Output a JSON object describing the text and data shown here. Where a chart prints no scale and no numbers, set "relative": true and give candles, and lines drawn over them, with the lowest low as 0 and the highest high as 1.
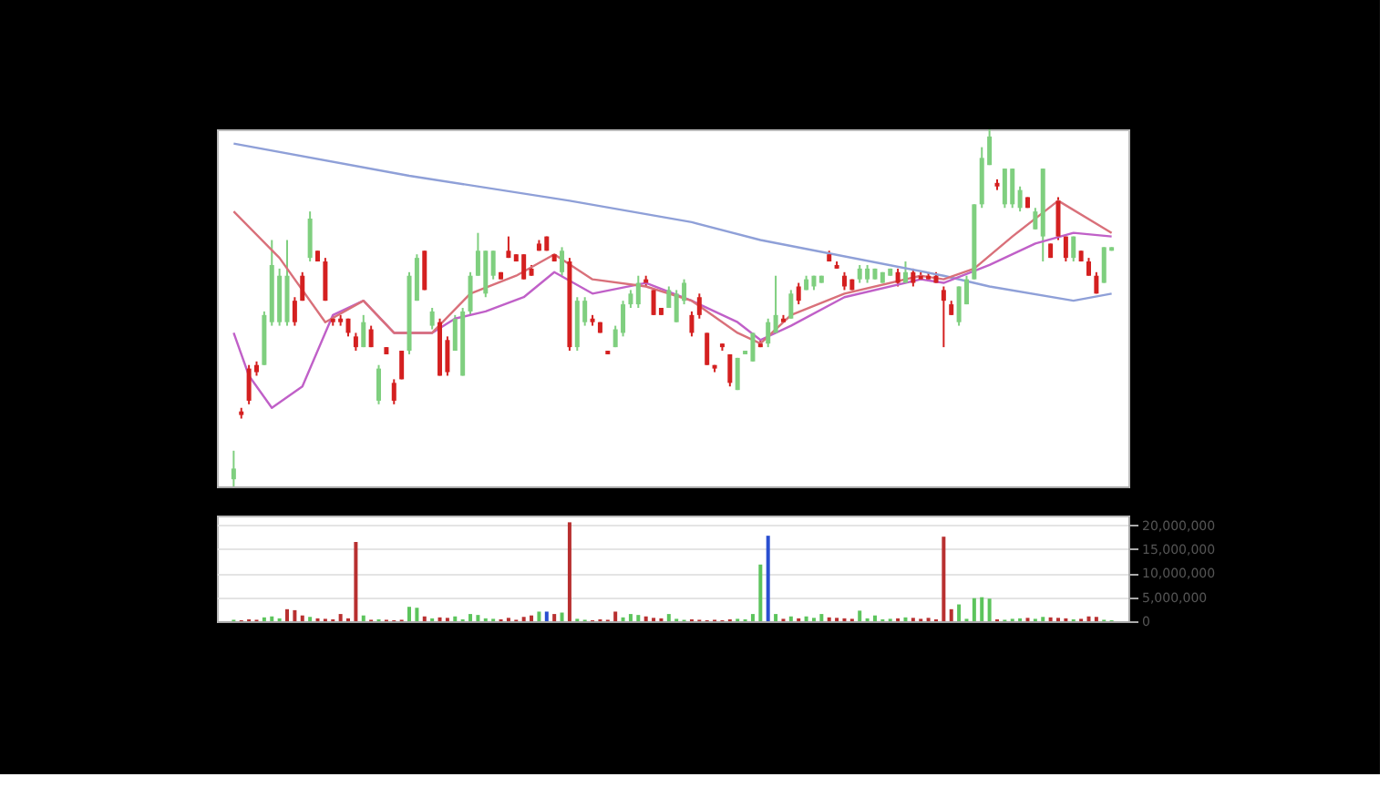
{
  "chart_data": [
    {
      "type": "candlestick",
      "relative": true,
      "tick_labels": false,
      "categories": [
        null,
        null,
        null,
        null,
        null,
        null,
        null,
        null,
        null,
        null,
        null,
        null,
        null,
        null,
        null,
        null,
        null,
        null,
        null,
        null,
        null,
        null,
        null,
        null,
        null,
        null,
        null,
        null,
        null,
        null,
        null,
        null,
        null,
        null,
        null,
        null,
        null,
        null,
        null,
        null,
        null,
        null,
        null,
        null,
        null,
        null,
        null,
        null,
        null,
        null,
        null,
        null,
        null,
        null,
        null,
        null,
        null,
        null,
        null,
        null,
        null,
        null,
        null,
        null,
        null,
        null,
        null,
        null,
        null,
        null,
        null,
        null,
        null,
        null,
        null,
        null,
        null,
        null,
        null,
        null,
        null,
        null,
        null,
        null,
        null,
        null,
        null,
        null,
        null,
        null,
        null,
        null,
        null,
        null,
        null,
        null,
        null,
        null,
        null,
        null,
        null,
        null,
        null,
        null,
        null,
        null,
        null,
        null,
        null,
        null,
        null,
        null,
        null,
        null,
        null,
        null
      ],
      "ohlc": [
        [
          0.02,
          0.1,
          0,
          0.05
        ],
        [
          0.21,
          0.22,
          0.19,
          0.2
        ],
        [
          0.33,
          0.34,
          0.23,
          0.24
        ],
        [
          0.34,
          0.35,
          0.31,
          0.32
        ],
        [
          0.34,
          0.49,
          0.34,
          0.48
        ],
        [
          0.46,
          0.69,
          0.45,
          0.62
        ],
        [
          0.46,
          0.61,
          0.45,
          0.59
        ],
        [
          0.46,
          0.69,
          0.45,
          0.59
        ],
        [
          0.52,
          0.53,
          0.45,
          0.46
        ],
        [
          0.59,
          0.6,
          0.52,
          0.52
        ],
        [
          0.64,
          0.77,
          0.63,
          0.75
        ],
        [
          0.66,
          0.66,
          0.63,
          0.63
        ],
        [
          0.63,
          0.64,
          0.52,
          0.52
        ],
        [
          0.47,
          0.48,
          0.45,
          0.46
        ],
        [
          0.47,
          0.48,
          0.45,
          0.46
        ],
        [
          0.47,
          0.47,
          0.42,
          0.43
        ],
        [
          0.42,
          0.43,
          0.38,
          0.39
        ],
        [
          0.39,
          0.48,
          0.39,
          0.46
        ],
        [
          0.44,
          0.45,
          0.39,
          0.39
        ],
        [
          0.24,
          0.34,
          0.23,
          0.33
        ],
        [
          0.39,
          0.39,
          0.37,
          0.37
        ],
        [
          0.29,
          0.3,
          0.23,
          0.24
        ],
        [
          0.38,
          0.38,
          0.3,
          0.3
        ],
        [
          0.38,
          0.6,
          0.37,
          0.59
        ],
        [
          0.52,
          0.65,
          0.52,
          0.64
        ],
        [
          0.66,
          0.66,
          0.55,
          0.55
        ],
        [
          0.45,
          0.5,
          0.44,
          0.49
        ],
        [
          0.46,
          0.47,
          0.31,
          0.31
        ],
        [
          0.41,
          0.42,
          0.31,
          0.32
        ],
        [
          0.38,
          0.48,
          0.38,
          0.47
        ],
        [
          0.31,
          0.5,
          0.31,
          0.49
        ],
        [
          0.49,
          0.6,
          0.48,
          0.59
        ],
        [
          0.59,
          0.71,
          0.59,
          0.66
        ],
        [
          0.54,
          0.66,
          0.53,
          0.66
        ],
        [
          0.59,
          0.66,
          0.58,
          0.66
        ],
        [
          0.6,
          0.6,
          0.58,
          0.58
        ],
        [
          0.66,
          0.7,
          0.64,
          0.64
        ],
        [
          0.65,
          0.65,
          0.63,
          0.63
        ],
        [
          0.65,
          0.65,
          0.58,
          0.58
        ],
        [
          0.61,
          0.62,
          0.59,
          0.59
        ],
        [
          0.68,
          0.69,
          0.66,
          0.66
        ],
        [
          0.7,
          0.7,
          0.66,
          0.66
        ],
        [
          0.65,
          0.65,
          0.63,
          0.63
        ],
        [
          0.6,
          0.67,
          0.59,
          0.66
        ],
        [
          0.63,
          0.64,
          0.38,
          0.39
        ],
        [
          0.39,
          0.53,
          0.38,
          0.52
        ],
        [
          0.46,
          0.53,
          0.45,
          0.52
        ],
        [
          0.47,
          0.48,
          0.45,
          0.46
        ],
        [
          0.46,
          0.46,
          0.43,
          0.43
        ],
        [
          0.38,
          0.38,
          0.37,
          0.37
        ],
        [
          0.39,
          0.45,
          0.39,
          0.44
        ],
        [
          0.43,
          0.52,
          0.42,
          0.51
        ],
        [
          0.51,
          0.55,
          0.5,
          0.54
        ],
        [
          0.51,
          0.59,
          0.5,
          0.57
        ],
        [
          0.58,
          0.59,
          0.56,
          0.57
        ],
        [
          0.55,
          0.55,
          0.48,
          0.48
        ],
        [
          0.5,
          0.5,
          0.48,
          0.48
        ],
        [
          0.5,
          0.56,
          0.5,
          0.55
        ],
        [
          0.46,
          0.55,
          0.46,
          0.54
        ],
        [
          0.52,
          0.58,
          0.51,
          0.57
        ],
        [
          0.48,
          0.49,
          0.42,
          0.43
        ],
        [
          0.53,
          0.54,
          0.47,
          0.48
        ],
        [
          0.43,
          0.43,
          0.34,
          0.34
        ],
        [
          0.34,
          0.34,
          0.32,
          0.33
        ],
        [
          0.4,
          0.4,
          0.38,
          0.39
        ],
        [
          0.37,
          0.37,
          0.28,
          0.29
        ],
        [
          0.27,
          0.36,
          0.27,
          0.36
        ],
        [
          0.37,
          0.38,
          0.37,
          0.38
        ],
        [
          0.35,
          0.43,
          0.35,
          0.43
        ],
        [
          0.4,
          0.41,
          0.39,
          0.39
        ],
        [
          0.4,
          0.47,
          0.39,
          0.46
        ],
        [
          0.43,
          0.59,
          0.43,
          0.48
        ],
        [
          0.47,
          0.48,
          0.46,
          0.46
        ],
        [
          0.47,
          0.55,
          0.47,
          0.54
        ],
        [
          0.56,
          0.57,
          0.51,
          0.52
        ],
        [
          0.55,
          0.59,
          0.55,
          0.58
        ],
        [
          0.56,
          0.59,
          0.55,
          0.59
        ],
        [
          0.57,
          0.59,
          0.57,
          0.59
        ],
        [
          0.65,
          0.66,
          0.63,
          0.63
        ],
        [
          0.62,
          0.63,
          0.61,
          0.61
        ],
        [
          0.59,
          0.6,
          0.55,
          0.56
        ],
        [
          0.58,
          0.58,
          0.55,
          0.55
        ],
        [
          0.58,
          0.62,
          0.57,
          0.61
        ],
        [
          0.58,
          0.62,
          0.57,
          0.61
        ],
        [
          0.58,
          0.61,
          0.58,
          0.61
        ],
        [
          0.57,
          0.6,
          0.57,
          0.6
        ],
        [
          0.59,
          0.61,
          0.59,
          0.61
        ],
        [
          0.6,
          0.61,
          0.56,
          0.57
        ],
        [
          0.57,
          0.63,
          0.57,
          0.6
        ],
        [
          0.6,
          0.61,
          0.56,
          0.57
        ],
        [
          0.59,
          0.6,
          0.58,
          0.58
        ],
        [
          0.59,
          0.6,
          0.58,
          0.58
        ],
        [
          0.59,
          0.6,
          0.57,
          0.57
        ],
        [
          0.55,
          0.56,
          0.39,
          0.52
        ],
        [
          0.51,
          0.52,
          0.48,
          0.48
        ],
        [
          0.46,
          0.56,
          0.45,
          0.56
        ],
        [
          0.51,
          0.59,
          0.51,
          0.58
        ],
        [
          0.58,
          0.79,
          0.58,
          0.79
        ],
        [
          0.79,
          0.95,
          0.78,
          0.92
        ],
        [
          0.9,
          1,
          0.9,
          0.98
        ],
        [
          0.85,
          0.86,
          0.83,
          0.84
        ],
        [
          0.79,
          0.89,
          0.78,
          0.89
        ],
        [
          0.79,
          0.89,
          0.78,
          0.89
        ],
        [
          0.78,
          0.84,
          0.77,
          0.83
        ],
        [
          0.81,
          0.81,
          0.78,
          0.78
        ],
        [
          0.72,
          0.78,
          0.72,
          0.77
        ],
        [
          0.7,
          0.89,
          0.63,
          0.89
        ],
        [
          0.68,
          0.68,
          0.64,
          0.64
        ],
        [
          0.8,
          0.81,
          0.69,
          0.7
        ],
        [
          0.7,
          0.7,
          0.63,
          0.64
        ],
        [
          0.64,
          0.7,
          0.63,
          0.7
        ],
        [
          0.66,
          0.66,
          0.63,
          0.63
        ],
        [
          0.63,
          0.64,
          0.59,
          0.59
        ],
        [
          0.59,
          0.6,
          0.54,
          0.54
        ],
        [
          0.57,
          0.67,
          0.57,
          0.67
        ],
        [
          0.66,
          0.67,
          0.66,
          0.67
        ]
      ],
      "colors": [
        "#7fcf7f",
        "#d42020",
        "#d42020",
        "#d42020",
        "#7fcf7f",
        "#7fcf7f",
        "#7fcf7f",
        "#7fcf7f",
        "#d42020",
        "#d42020",
        "#7fcf7f",
        "#d42020",
        "#d42020",
        "#d42020",
        "#d42020",
        "#d42020",
        "#d42020",
        "#7fcf7f",
        "#d42020",
        "#7fcf7f",
        "#d42020",
        "#d42020",
        "#d42020",
        "#7fcf7f",
        "#7fcf7f",
        "#d42020",
        "#7fcf7f",
        "#d42020",
        "#d42020",
        "#7fcf7f",
        "#7fcf7f",
        "#7fcf7f",
        "#7fcf7f",
        "#7fcf7f",
        "#7fcf7f",
        "#d42020",
        "#d42020",
        "#d42020",
        "#d42020",
        "#d42020",
        "#d42020",
        "#d42020",
        "#d42020",
        "#7fcf7f",
        "#d42020",
        "#7fcf7f",
        "#7fcf7f",
        "#d42020",
        "#d42020",
        "#d42020",
        "#7fcf7f",
        "#7fcf7f",
        "#7fcf7f",
        "#7fcf7f",
        "#d42020",
        "#d42020",
        "#d42020",
        "#7fcf7f",
        "#7fcf7f",
        "#7fcf7f",
        "#d42020",
        "#d42020",
        "#d42020",
        "#d42020",
        "#d42020",
        "#d42020",
        "#7fcf7f",
        "#7fcf7f",
        "#7fcf7f",
        "#d42020",
        "#7fcf7f",
        "#7fcf7f",
        "#d42020",
        "#7fcf7f",
        "#d42020",
        "#7fcf7f",
        "#7fcf7f",
        "#7fcf7f",
        "#d42020",
        "#d42020",
        "#d42020",
        "#d42020",
        "#7fcf7f",
        "#7fcf7f",
        "#7fcf7f",
        "#7fcf7f",
        "#7fcf7f",
        "#d42020",
        "#7fcf7f",
        "#d42020",
        "#d42020",
        "#d42020",
        "#d42020",
        "#d42020",
        "#d42020",
        "#7fcf7f",
        "#7fcf7f",
        "#7fcf7f",
        "#7fcf7f",
        "#7fcf7f",
        "#d42020",
        "#7fcf7f",
        "#7fcf7f",
        "#7fcf7f",
        "#d42020",
        "#7fcf7f",
        "#7fcf7f",
        "#d42020",
        "#d42020",
        "#d42020",
        "#7fcf7f",
        "#d42020",
        "#d42020",
        "#d42020",
        "#7fcf7f",
        "#7fcf7f"
      ],
      "series": [
        {
          "type": "line",
          "color": "#8fa0d8",
          "values": [
            0.96,
            null,
            null,
            null,
            null,
            null,
            null,
            null,
            null,
            null,
            null,
            null,
            null,
            null,
            null,
            null,
            null,
            null,
            null,
            null,
            null,
            null,
            null,
            0.87,
            null,
            null,
            null,
            null,
            null,
            null,
            null,
            null,
            null,
            null,
            null,
            null,
            null,
            null,
            null,
            null,
            null,
            null,
            null,
            null,
            0.8,
            null,
            null,
            null,
            null,
            null,
            null,
            null,
            null,
            null,
            null,
            null,
            null,
            null,
            null,
            null,
            0.74,
            null,
            null,
            null,
            null,
            null,
            null,
            null,
            null,
            0.69,
            null,
            null,
            null,
            null,
            null,
            null,
            null,
            null,
            null,
            null,
            null,
            null,
            null,
            null,
            null,
            null,
            null,
            null,
            null,
            null,
            null,
            null,
            null,
            0.59,
            null,
            null,
            null,
            null,
            null,
            0.56,
            null,
            null,
            null,
            null,
            null,
            null,
            null,
            null,
            null,
            null,
            0.52,
            null,
            null,
            null,
            null,
            0.54
          ]
        },
        {
          "type": "line",
          "color": "#c060c8",
          "values": [
            0.43,
            null,
            0.31,
            null,
            null,
            0.22,
            null,
            null,
            null,
            0.28,
            null,
            null,
            null,
            0.48,
            null,
            null,
            null,
            0.52,
            null,
            null,
            null,
            0.43,
            null,
            null,
            null,
            null,
            0.43,
            null,
            null,
            0.47,
            null,
            null,
            null,
            0.49,
            null,
            null,
            null,
            null,
            0.53,
            null,
            null,
            null,
            0.6,
            null,
            null,
            null,
            null,
            0.54,
            null,
            null,
            null,
            null,
            null,
            null,
            0.57,
            null,
            null,
            null,
            null,
            null,
            0.52,
            null,
            null,
            null,
            null,
            null,
            0.46,
            null,
            null,
            0.41,
            null,
            null,
            null,
            0.45,
            null,
            null,
            null,
            null,
            null,
            null,
            0.53,
            null,
            null,
            null,
            null,
            null,
            null,
            null,
            null,
            null,
            0.58,
            null,
            null,
            0.57,
            null,
            null,
            null,
            null,
            null,
            0.62,
            null,
            null,
            null,
            null,
            null,
            0.68,
            null,
            null,
            null,
            null,
            0.71,
            null,
            null,
            null,
            null,
            0.7
          ]
        },
        {
          "type": "line",
          "color": "#d9707a",
          "values": [
            0.77,
            null,
            null,
            null,
            null,
            null,
            0.64,
            null,
            null,
            null,
            null,
            null,
            0.46,
            null,
            null,
            null,
            null,
            0.52,
            null,
            null,
            null,
            0.43,
            null,
            null,
            null,
            null,
            0.43,
            null,
            null,
            null,
            null,
            0.54,
            null,
            null,
            null,
            null,
            null,
            0.59,
            null,
            null,
            null,
            null,
            0.65,
            null,
            null,
            null,
            null,
            0.58,
            null,
            null,
            null,
            null,
            null,
            null,
            0.56,
            null,
            null,
            null,
            null,
            null,
            0.52,
            null,
            null,
            null,
            null,
            null,
            0.43,
            null,
            null,
            0.4,
            null,
            null,
            null,
            0.48,
            null,
            null,
            null,
            null,
            null,
            null,
            0.54,
            null,
            null,
            null,
            null,
            null,
            null,
            null,
            null,
            null,
            0.59,
            null,
            null,
            0.58,
            null,
            null,
            null,
            0.61,
            null,
            null,
            null,
            null,
            0.7,
            null,
            null,
            null,
            null,
            null,
            0.8,
            null,
            null,
            null,
            null,
            null,
            null,
            0.71
          ]
        }
      ]
    },
    {
      "type": "bar",
      "tick_labels": "y",
      "grid": "y",
      "ylim": [
        0,
        22000000
      ],
      "yticks": [
        {
          "value": 0,
          "label": "0"
        },
        {
          "value": 5000000,
          "label": "5,000,000"
        },
        {
          "value": 10000000,
          "label": "10,000,000"
        },
        {
          "value": 15000000,
          "label": "15,000,000"
        },
        {
          "value": 20000000,
          "label": "20,000,000"
        }
      ],
      "categories": [
        null,
        null,
        null,
        null,
        null,
        null,
        null,
        null,
        null,
        null,
        null,
        null,
        null,
        null,
        null,
        null,
        null,
        null,
        null,
        null,
        null,
        null,
        null,
        null,
        null,
        null,
        null,
        null,
        null,
        null,
        null,
        null,
        null,
        null,
        null,
        null,
        null,
        null,
        null,
        null,
        null,
        null,
        null,
        null,
        null,
        null,
        null,
        null,
        null,
        null,
        null,
        null,
        null,
        null,
        null,
        null,
        null,
        null,
        null,
        null,
        null,
        null,
        null,
        null,
        null,
        null,
        null,
        null,
        null,
        null,
        null,
        null,
        null,
        null,
        null,
        null,
        null,
        null,
        null,
        null,
        null,
        null,
        null,
        null,
        null,
        null,
        null,
        null,
        null,
        null,
        null,
        null,
        null,
        null,
        null,
        null,
        null,
        null,
        null,
        null,
        null,
        null,
        null,
        null,
        null,
        null,
        null,
        null,
        null,
        null,
        null,
        null,
        null,
        null,
        null,
        null
      ],
      "values": [
        300000,
        200000,
        400000,
        300000,
        800000,
        1000000,
        600000,
        2500000,
        2300000,
        1200000,
        900000,
        600000,
        500000,
        400000,
        1500000,
        600000,
        16500000,
        1200000,
        300000,
        400000,
        300000,
        200000,
        300000,
        3000000,
        2800000,
        1000000,
        600000,
        800000,
        700000,
        1000000,
        400000,
        1500000,
        1300000,
        600000,
        500000,
        400000,
        700000,
        300000,
        900000,
        1200000,
        2000000,
        2000000,
        1500000,
        1800000,
        20600000,
        500000,
        300000,
        200000,
        400000,
        300000,
        2000000,
        800000,
        1500000,
        1300000,
        1000000,
        700000,
        600000,
        1500000,
        500000,
        300000,
        400000,
        300000,
        200000,
        300000,
        200000,
        400000,
        500000,
        400000,
        1500000,
        11800000,
        17800000,
        1500000,
        500000,
        1000000,
        600000,
        1000000,
        700000,
        1500000,
        800000,
        700000,
        600000,
        500000,
        2200000,
        600000,
        1200000,
        400000,
        500000,
        600000,
        800000,
        700000,
        500000,
        700000,
        400000,
        17600000,
        2500000,
        3500000,
        500000,
        4800000,
        5000000,
        4700000,
        400000,
        300000,
        500000,
        600000,
        700000,
        500000,
        900000,
        800000,
        700000,
        600000,
        400000,
        500000,
        1000000,
        900000,
        300000,
        200000
      ],
      "colors": [
        "#5cc45c",
        "#b83030",
        "#b83030",
        "#b83030",
        "#5cc45c",
        "#5cc45c",
        "#5cc45c",
        "#b83030",
        "#b83030",
        "#b83030",
        "#5cc45c",
        "#b83030",
        "#b83030",
        "#b83030",
        "#b83030",
        "#b83030",
        "#b83030",
        "#5cc45c",
        "#b83030",
        "#5cc45c",
        "#b83030",
        "#b83030",
        "#b83030",
        "#5cc45c",
        "#5cc45c",
        "#b83030",
        "#5cc45c",
        "#b83030",
        "#b83030",
        "#5cc45c",
        "#5cc45c",
        "#5cc45c",
        "#5cc45c",
        "#5cc45c",
        "#5cc45c",
        "#b83030",
        "#b83030",
        "#b83030",
        "#b83030",
        "#b83030",
        "#5cc45c",
        "#2a4fd0",
        "#b83030",
        "#5cc45c",
        "#b83030",
        "#5cc45c",
        "#5cc45c",
        "#b83030",
        "#b83030",
        "#b83030",
        "#b83030",
        "#5cc45c",
        "#5cc45c",
        "#5cc45c",
        "#b83030",
        "#b83030",
        "#b83030",
        "#5cc45c",
        "#5cc45c",
        "#5cc45c",
        "#b83030",
        "#b83030",
        "#b83030",
        "#b83030",
        "#b83030",
        "#b83030",
        "#5cc45c",
        "#5cc45c",
        "#5cc45c",
        "#5cc45c",
        "#2a4fd0",
        "#5cc45c",
        "#b83030",
        "#5cc45c",
        "#b83030",
        "#5cc45c",
        "#5cc45c",
        "#5cc45c",
        "#b83030",
        "#b83030",
        "#b83030",
        "#b83030",
        "#5cc45c",
        "#5cc45c",
        "#5cc45c",
        "#5cc45c",
        "#5cc45c",
        "#b83030",
        "#5cc45c",
        "#b83030",
        "#b83030",
        "#b83030",
        "#b83030",
        "#b83030",
        "#b83030",
        "#5cc45c",
        "#5cc45c",
        "#5cc45c",
        "#5cc45c",
        "#5cc45c",
        "#b83030",
        "#5cc45c",
        "#5cc45c",
        "#5cc45c",
        "#b83030",
        "#5cc45c",
        "#5cc45c",
        "#b83030",
        "#b83030",
        "#b83030",
        "#5cc45c",
        "#b83030",
        "#b83030",
        "#b83030",
        "#5cc45c",
        "#5cc45c"
      ]
    }
  ]
}
